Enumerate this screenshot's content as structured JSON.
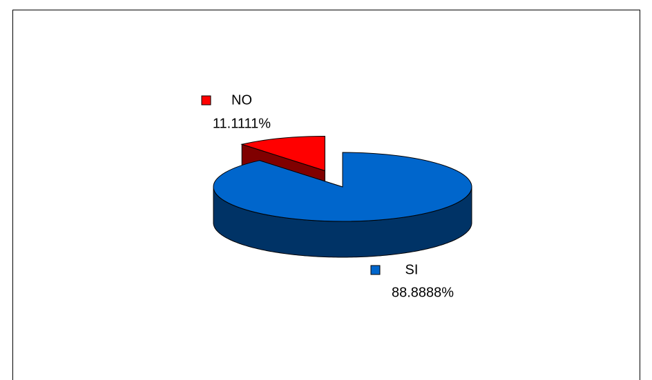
{
  "chart_data": {
    "type": "pie",
    "categories": [
      "NO",
      "SI"
    ],
    "values": [
      11.1111,
      88.8888
    ],
    "value_labels": [
      "11.1111%",
      "88.8888%"
    ],
    "colors": [
      "#ff0000",
      "#0066cc"
    ],
    "explode": [
      true,
      false
    ],
    "legend": "inline"
  }
}
